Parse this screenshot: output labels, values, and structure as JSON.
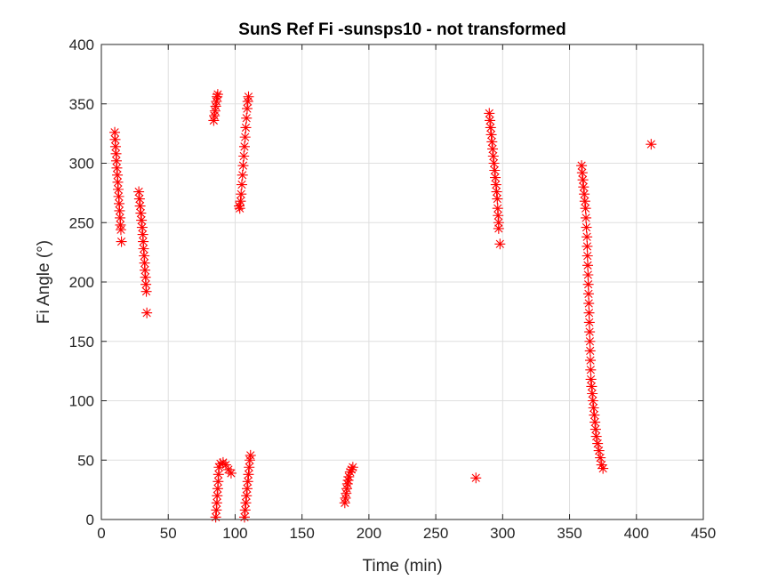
{
  "chart_data": {
    "type": "scatter",
    "title": "SunS Ref Fi -sunsps10 - not transformed",
    "xlabel": "Time (min)",
    "ylabel": "Fi Angle (°)",
    "xlim": [
      0,
      450
    ],
    "ylim": [
      0,
      400
    ],
    "xticks": [
      "0",
      "50",
      "100",
      "150",
      "200",
      "250",
      "300",
      "350",
      "400",
      "450"
    ],
    "yticks": [
      "0",
      "50",
      "100",
      "150",
      "200",
      "250",
      "300",
      "350",
      "400"
    ],
    "grid": true,
    "marker": "asterisk",
    "marker_color": "#ff0000",
    "series": [
      {
        "points": [
          [
            10,
            326
          ],
          [
            10.3,
            320
          ],
          [
            10.6,
            314
          ],
          [
            11,
            308
          ],
          [
            11.3,
            302
          ],
          [
            11.6,
            296
          ],
          [
            12,
            290
          ],
          [
            12.3,
            284
          ],
          [
            12.6,
            278
          ],
          [
            13,
            272
          ],
          [
            13.3,
            266
          ],
          [
            13.6,
            260
          ],
          [
            14,
            254
          ],
          [
            14.3,
            248
          ],
          [
            14.6,
            244
          ],
          [
            15,
            234
          ],
          [
            28,
            276
          ],
          [
            28.5,
            270
          ],
          [
            29,
            264
          ],
          [
            29.5,
            258
          ],
          [
            30,
            252
          ],
          [
            30.5,
            246
          ],
          [
            31,
            240
          ],
          [
            31.3,
            234
          ],
          [
            31.6,
            228
          ],
          [
            32,
            222
          ],
          [
            32.3,
            216
          ],
          [
            32.6,
            210
          ],
          [
            33,
            204
          ],
          [
            33.3,
            198
          ],
          [
            33.6,
            192
          ],
          [
            34,
            174
          ],
          [
            84,
            336
          ],
          [
            84.5,
            340
          ],
          [
            85,
            344
          ],
          [
            85.5,
            348
          ],
          [
            86,
            352
          ],
          [
            86.5,
            356
          ],
          [
            87,
            358
          ],
          [
            85.5,
            2
          ],
          [
            86,
            8
          ],
          [
            86.3,
            14
          ],
          [
            86.6,
            20
          ],
          [
            87,
            26
          ],
          [
            87.3,
            32
          ],
          [
            87.6,
            38
          ],
          [
            88,
            44
          ],
          [
            89,
            47
          ],
          [
            91,
            48
          ],
          [
            93,
            46
          ],
          [
            95,
            42
          ],
          [
            97,
            39
          ],
          [
            103,
            264
          ],
          [
            103.5,
            262
          ],
          [
            104,
            268
          ],
          [
            104.5,
            274
          ],
          [
            105,
            282
          ],
          [
            105.5,
            290
          ],
          [
            106,
            298
          ],
          [
            106.5,
            306
          ],
          [
            107,
            314
          ],
          [
            107.5,
            322
          ],
          [
            108,
            330
          ],
          [
            108.5,
            338
          ],
          [
            109,
            346
          ],
          [
            109.5,
            352
          ],
          [
            110,
            356
          ],
          [
            107,
            2
          ],
          [
            107.5,
            8
          ],
          [
            108,
            14
          ],
          [
            108.5,
            20
          ],
          [
            109,
            26
          ],
          [
            109.5,
            32
          ],
          [
            110,
            38
          ],
          [
            110.5,
            44
          ],
          [
            111,
            50
          ],
          [
            111.5,
            54
          ],
          [
            182,
            14
          ],
          [
            182.5,
            18
          ],
          [
            183,
            22
          ],
          [
            183.5,
            26
          ],
          [
            184,
            30
          ],
          [
            184.5,
            33
          ],
          [
            185,
            36
          ],
          [
            186,
            40
          ],
          [
            187,
            42
          ],
          [
            188,
            44
          ],
          [
            280,
            35
          ],
          [
            290,
            342
          ],
          [
            290.5,
            336
          ],
          [
            291,
            330
          ],
          [
            291.5,
            324
          ],
          [
            292,
            318
          ],
          [
            292.5,
            312
          ],
          [
            293,
            306
          ],
          [
            293.5,
            300
          ],
          [
            294,
            294
          ],
          [
            294.5,
            288
          ],
          [
            295,
            282
          ],
          [
            295.5,
            276
          ],
          [
            296,
            270
          ],
          [
            296.3,
            262
          ],
          [
            296.6,
            256
          ],
          [
            297,
            250
          ],
          [
            297,
            245
          ],
          [
            298,
            232
          ],
          [
            359,
            298
          ],
          [
            359.5,
            292
          ],
          [
            360,
            286
          ],
          [
            360.5,
            280
          ],
          [
            361,
            274
          ],
          [
            361.5,
            268
          ],
          [
            362,
            262
          ],
          [
            362.3,
            254
          ],
          [
            362.6,
            246
          ],
          [
            363,
            238
          ],
          [
            363.2,
            230
          ],
          [
            363.4,
            222
          ],
          [
            363.6,
            214
          ],
          [
            363.8,
            206
          ],
          [
            364,
            198
          ],
          [
            364.2,
            190
          ],
          [
            364.4,
            182
          ],
          [
            364.6,
            174
          ],
          [
            364.8,
            166
          ],
          [
            365,
            158
          ],
          [
            365.2,
            150
          ],
          [
            365.4,
            142
          ],
          [
            365.6,
            134
          ],
          [
            365.8,
            126
          ],
          [
            366,
            118
          ],
          [
            366.5,
            112
          ],
          [
            367,
            106
          ],
          [
            367.5,
            100
          ],
          [
            368,
            94
          ],
          [
            368.5,
            88
          ],
          [
            369,
            82
          ],
          [
            369.5,
            76
          ],
          [
            370,
            70
          ],
          [
            371,
            64
          ],
          [
            372,
            58
          ],
          [
            373,
            52
          ],
          [
            374,
            46
          ],
          [
            375,
            43
          ],
          [
            411,
            316
          ]
        ]
      }
    ]
  }
}
